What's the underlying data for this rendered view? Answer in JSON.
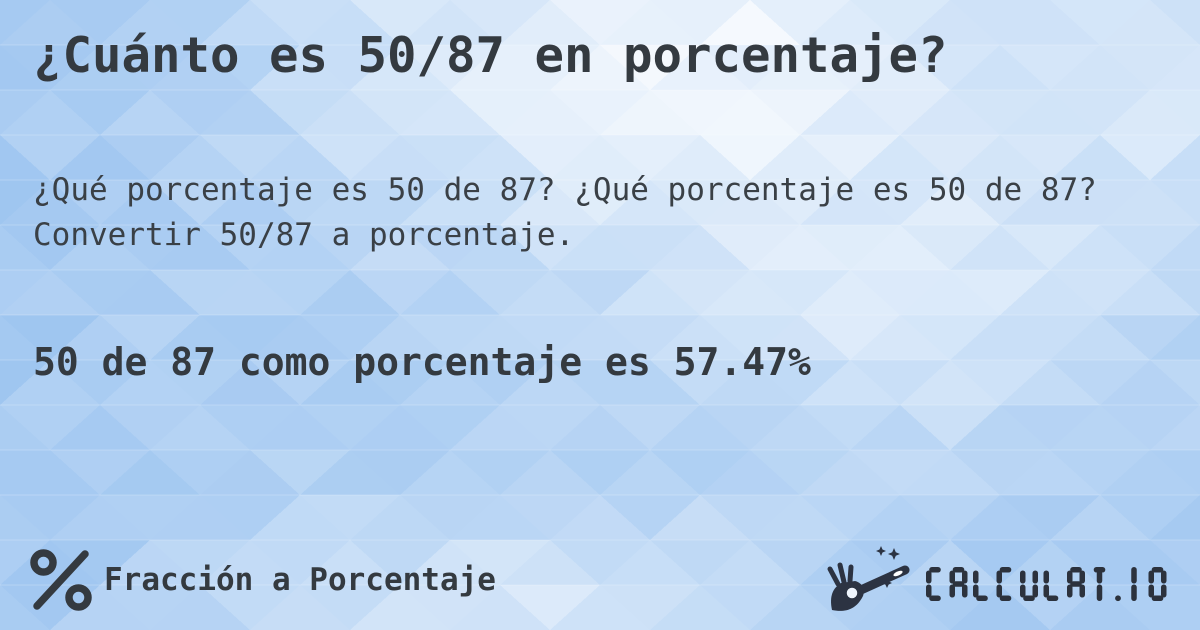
{
  "card": {
    "title": "¿Cuánto es 50/87 en porcentaje?",
    "description": "¿Qué porcentaje es 50 de 87? ¿Qué porcentaje es 50 de 87? Convertir 50/87 a porcentaje.",
    "answer": "50 de 87 como porcentaje es 57.47%"
  },
  "footer": {
    "category": {
      "icon": "percent-icon",
      "label": "Fracción a Porcentaje"
    },
    "brand": {
      "icon": "magic-wand-hand-icon",
      "name": "CALCULAT.IO"
    }
  },
  "theme": {
    "text_color": "#343a40",
    "background_base": "#9cc4f0",
    "background_highlight": "#ffffff",
    "pattern": "triangle-mosaic"
  }
}
